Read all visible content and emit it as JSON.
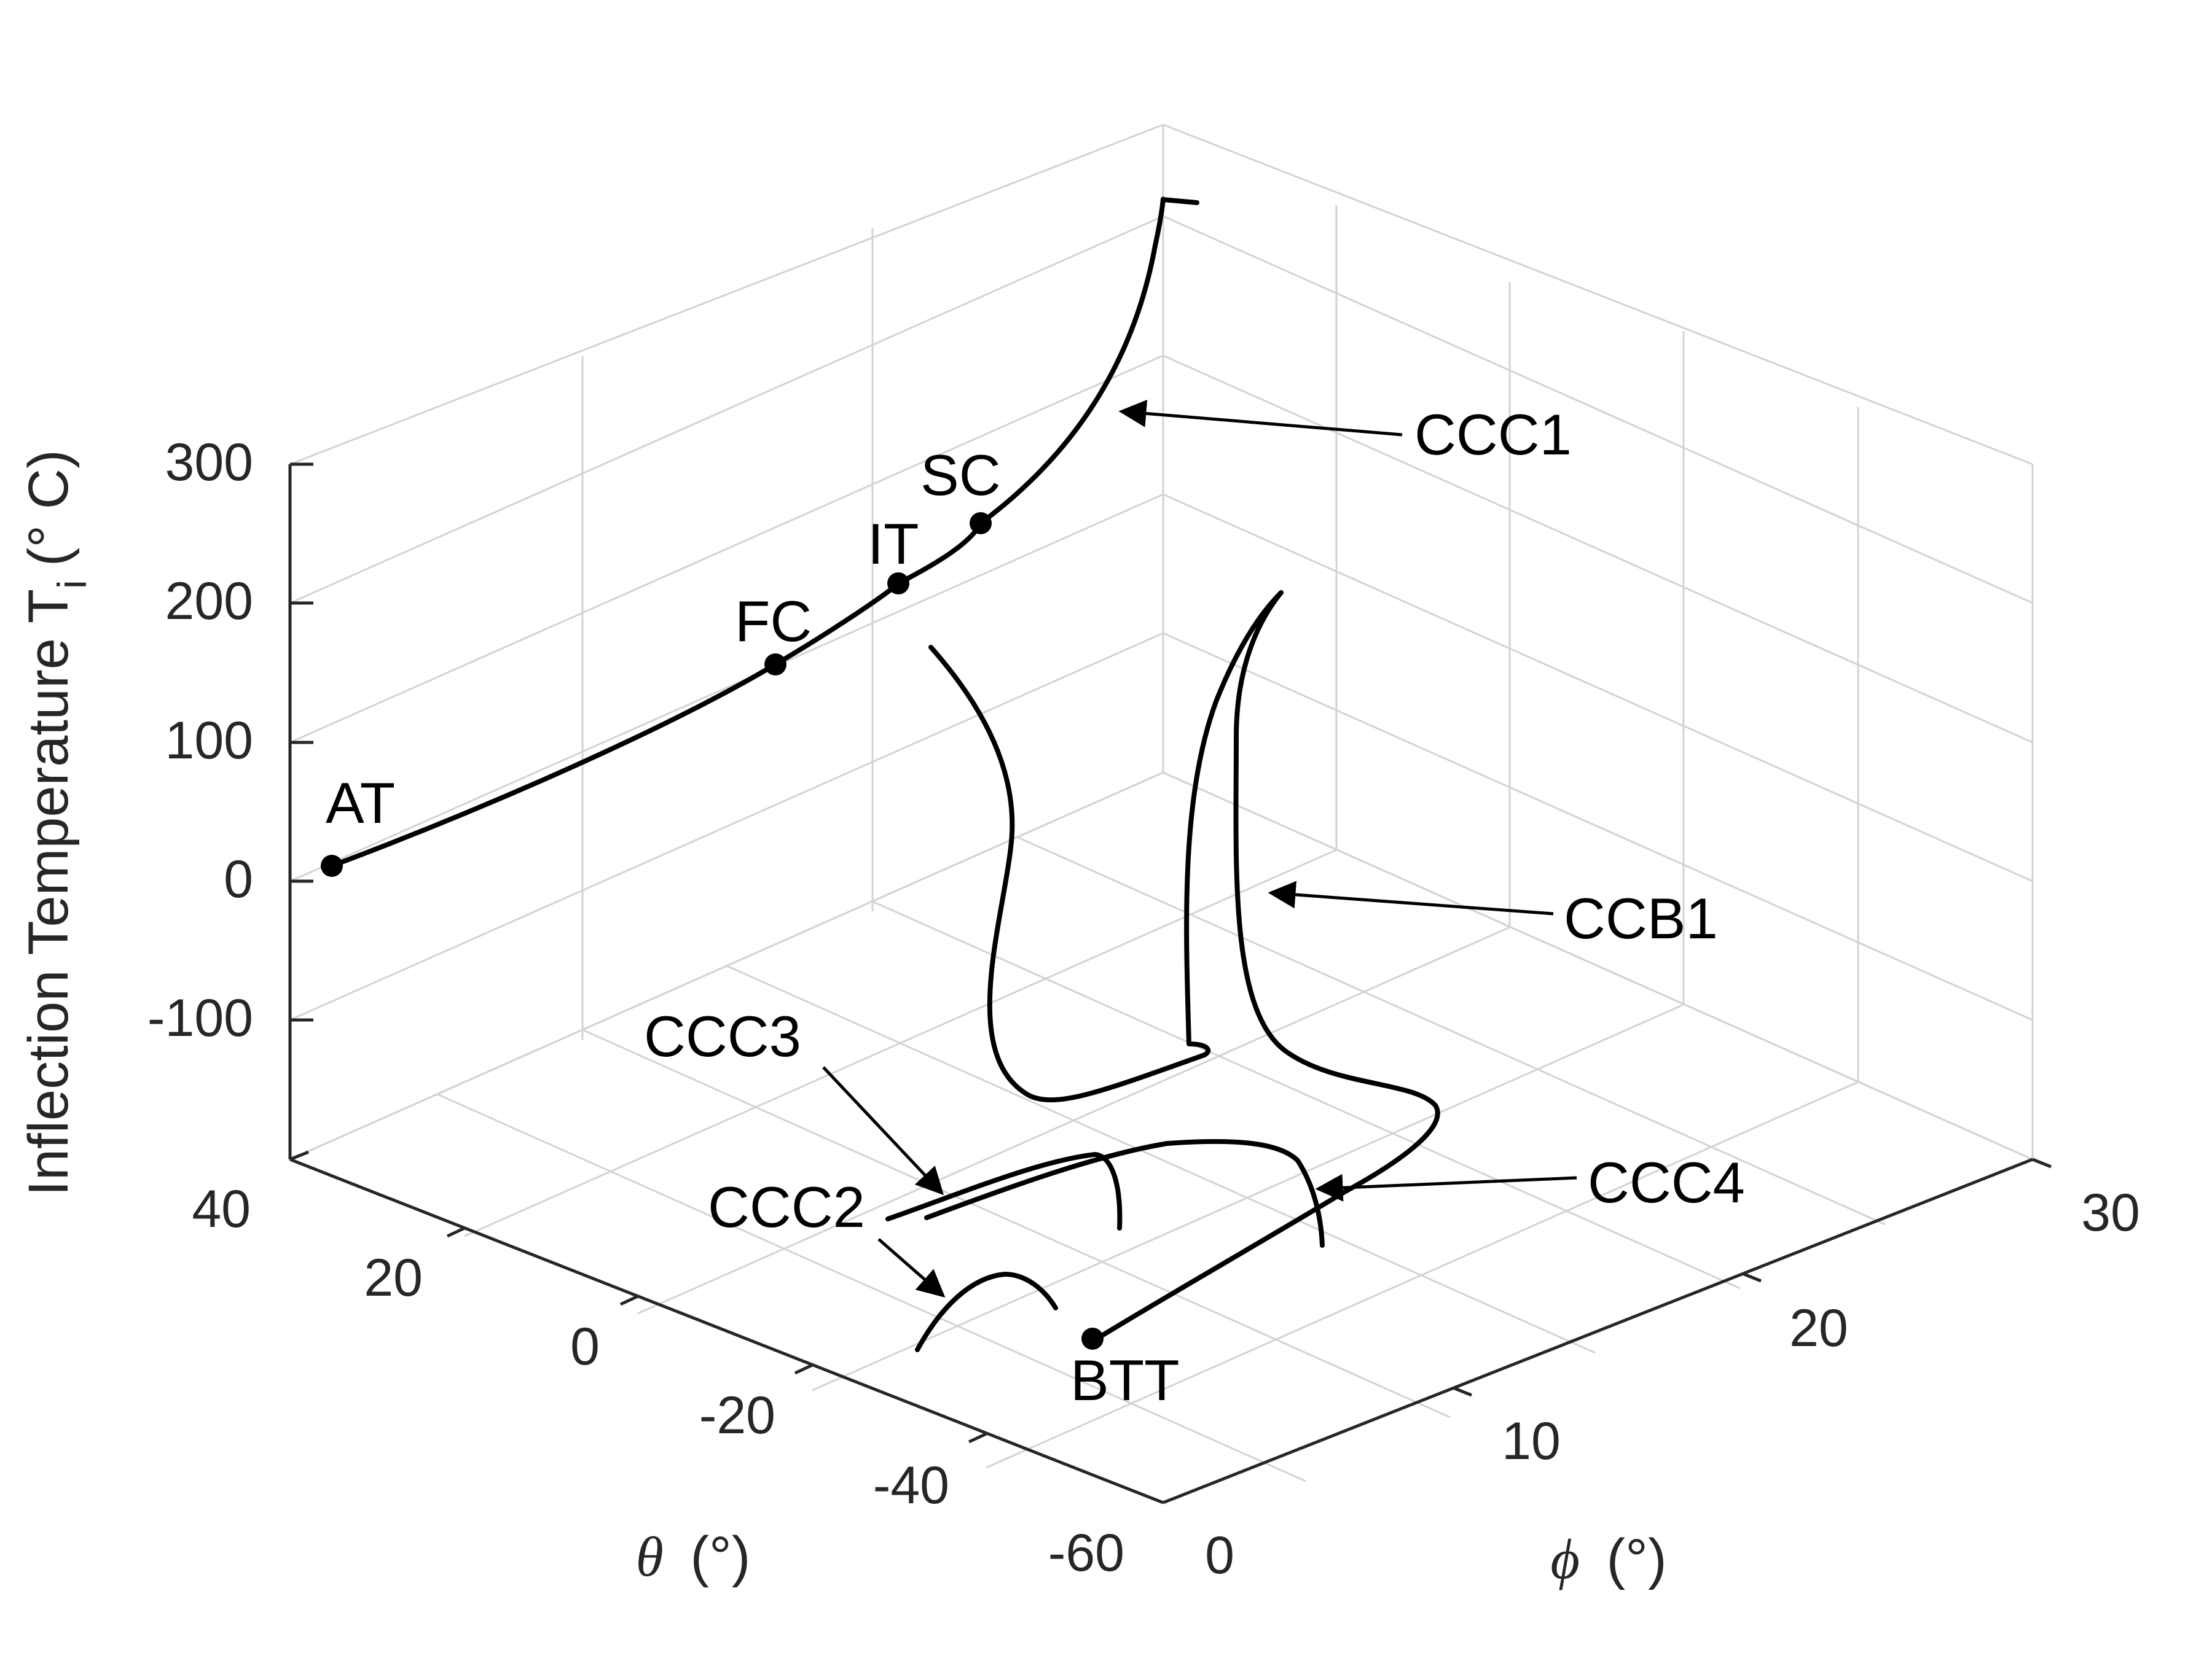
{
  "chart_data": {
    "type": "line",
    "projection": "3d",
    "grid": true,
    "axes": {
      "theta": {
        "symbol": "θ",
        "unit": "(°)",
        "ticks": [
          "40",
          "20",
          "0",
          "-20",
          "-40",
          "-60"
        ]
      },
      "phi": {
        "symbol": "ϕ",
        "unit": "(°)",
        "ticks": [
          "0",
          "10",
          "20",
          "30"
        ]
      },
      "z": {
        "label": "Inflection Temperature T",
        "subscript": "i",
        "unit": "(° C)",
        "ticks": [
          "300",
          "200",
          "100",
          "0",
          "-100"
        ]
      }
    },
    "series": [
      {
        "name": "CCC1"
      },
      {
        "name": "CCB1"
      },
      {
        "name": "CCC2"
      },
      {
        "name": "CCC3"
      },
      {
        "name": "CCC4"
      }
    ],
    "points": [
      {
        "label": "AT"
      },
      {
        "label": "FC"
      },
      {
        "label": "IT"
      },
      {
        "label": "SC"
      },
      {
        "label": "BTT"
      }
    ]
  }
}
